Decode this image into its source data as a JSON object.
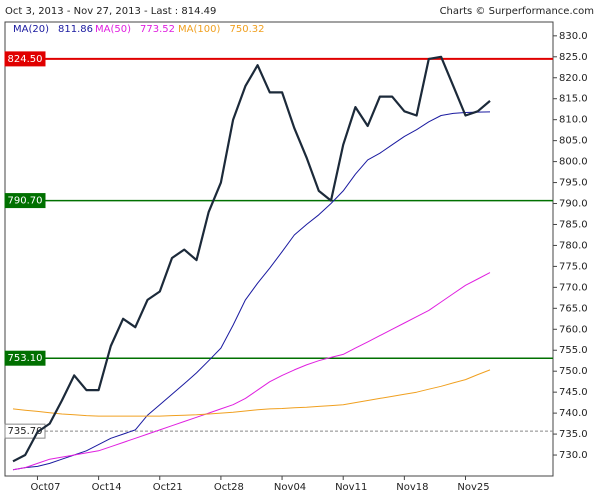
{
  "chart_data": {
    "type": "line",
    "title": "Oct 3, 2013 - Nov 27, 2013 - Last : 814.49",
    "source": "Charts © Surperformance.com",
    "categories": [
      null,
      null,
      "Oct07",
      null,
      null,
      null,
      null,
      "Oct14",
      null,
      null,
      null,
      null,
      "Oct21",
      null,
      null,
      null,
      null,
      "Oct28",
      null,
      null,
      null,
      null,
      "Nov04",
      null,
      null,
      null,
      null,
      "Nov11",
      null,
      null,
      null,
      null,
      "Nov18",
      null,
      null,
      null,
      null,
      "Nov25",
      null,
      null
    ],
    "price": {
      "color": "#1c2a3a",
      "values": [
        728.5,
        730.0,
        735.5,
        737.5,
        743,
        749,
        745.5,
        745.5,
        756,
        762.5,
        760.5,
        767,
        769,
        777,
        779,
        776.5,
        788,
        795,
        810,
        818,
        823,
        816.5,
        816.5,
        808,
        801,
        793,
        790.7,
        804,
        813,
        808.5,
        815.5,
        815.5,
        812,
        811,
        824.5,
        825,
        818,
        811,
        812,
        814.49
      ]
    },
    "series": [
      {
        "name": "MA(20)",
        "color": "#1a1aa0",
        "values": [
          726.5,
          727,
          727.3,
          728,
          729,
          730,
          731,
          732.5,
          734,
          735,
          736,
          739.5,
          742,
          744.5,
          747,
          749.6,
          752.5,
          755.5,
          761,
          767,
          771,
          774.6,
          778.5,
          782.5,
          785,
          787.3,
          790,
          793,
          797,
          800.4,
          802,
          804,
          806,
          807.6,
          809.5,
          811,
          811.5,
          811.7,
          811.8,
          811.86
        ]
      },
      {
        "name": "MA(50)",
        "color": "#e020e0",
        "values": [
          726.5,
          727,
          728,
          729,
          729.5,
          730,
          730.5,
          731,
          732,
          733,
          734,
          735,
          736,
          737,
          738,
          739,
          740,
          741,
          742,
          743.5,
          745.5,
          747.5,
          749,
          750.3,
          751.5,
          752.5,
          753.3,
          754,
          755.5,
          757,
          758.5,
          760,
          761.5,
          763,
          764.5,
          766.5,
          768.5,
          770.5,
          772,
          773.52
        ]
      },
      {
        "name": "MA(100)",
        "color": "#f0a020",
        "values": [
          741,
          740.7,
          740.4,
          740.1,
          739.8,
          739.6,
          739.4,
          739.3,
          739.3,
          739.3,
          739.3,
          739.3,
          739.3,
          739.4,
          739.5,
          739.6,
          739.8,
          740,
          740.2,
          740.5,
          740.8,
          741,
          741.1,
          741.3,
          741.4,
          741.6,
          741.8,
          742,
          742.5,
          743,
          743.5,
          744,
          744.5,
          745,
          745.7,
          746.4,
          747.2,
          748,
          749.2,
          750.32
        ]
      }
    ],
    "levels": [
      {
        "value": 824.5,
        "label": "824.50",
        "color": "#e00000"
      },
      {
        "value": 790.7,
        "label": "790.70",
        "color": "#007000"
      },
      {
        "value": 753.1,
        "label": "753.10",
        "color": "#007000"
      },
      {
        "value": 735.7,
        "label": "735.70",
        "color": "#888888"
      }
    ],
    "ylim": [
      725,
      833.3
    ],
    "yticks": [
      {
        "value": 730,
        "label": "730.0"
      },
      {
        "value": 735,
        "label": "735.0"
      },
      {
        "value": 740,
        "label": "740.0"
      },
      {
        "value": 745,
        "label": "745.0"
      },
      {
        "value": 750,
        "label": "750.0"
      },
      {
        "value": 755,
        "label": "755.0"
      },
      {
        "value": 760,
        "label": "760.0"
      },
      {
        "value": 765,
        "label": "765.0"
      },
      {
        "value": 770,
        "label": "770.0"
      },
      {
        "value": 775,
        "label": "775.0"
      },
      {
        "value": 780,
        "label": "780.0"
      },
      {
        "value": 785,
        "label": "785.0"
      },
      {
        "value": 790,
        "label": "790.0"
      },
      {
        "value": 795,
        "label": "795.0"
      },
      {
        "value": 800,
        "label": "800.0"
      },
      {
        "value": 805,
        "label": "805.0"
      },
      {
        "value": 810,
        "label": "810.0"
      },
      {
        "value": 815,
        "label": "815.0"
      },
      {
        "value": 820,
        "label": "820.0"
      },
      {
        "value": 825,
        "label": "825.0"
      },
      {
        "value": 830,
        "label": "830.0"
      }
    ]
  }
}
